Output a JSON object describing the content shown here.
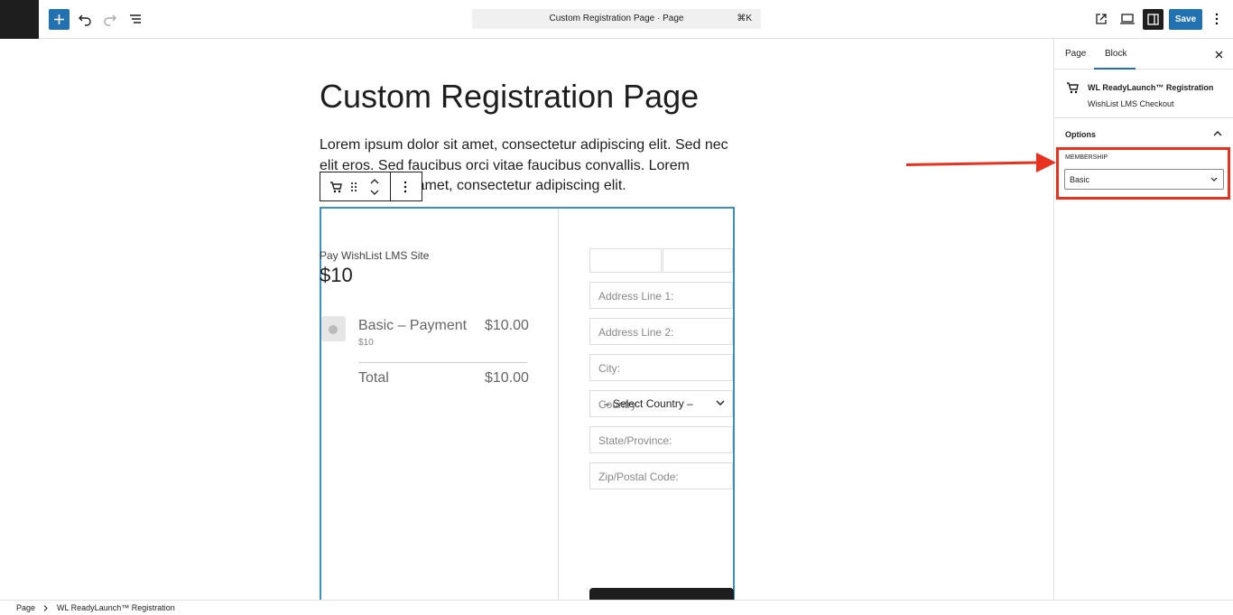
{
  "toolbar": {
    "document_title": "Custom Registration Page · Page",
    "shortcut": "⌘K",
    "save": "Save"
  },
  "editor": {
    "title": "Custom Registration Page",
    "paragraph": "Lorem ipsum dolor sit amet, consectetur adipiscing elit. Sed nec elit eros. Sed faucibus orci vitae faucibus convallis. Lorem ipsum dolor sit amet, consectetur adipiscing elit.",
    "checkout": {
      "site": "Pay WishList LMS Site",
      "price": "$10",
      "item": {
        "name": "Basic – Payment",
        "amount": "$10.00",
        "sub": "$10"
      },
      "total": {
        "label": "Total",
        "amount": "$10.00"
      },
      "fields": [
        "Address Line 1:",
        "Address Line 2:",
        "City:",
        "Country",
        "State/Province:",
        "Zip/Postal Code:"
      ],
      "country_select": "– Select Country –"
    }
  },
  "sidebar": {
    "tabs": [
      "Page",
      "Block"
    ],
    "block_title": "WL ReadyLaunch™ Registration",
    "block_desc": "WishList LMS Checkout",
    "panel": "Options",
    "field_label": "MEMBERSHIP",
    "field_value": "Basic"
  },
  "footer": {
    "breadcrumb": [
      "Page",
      "WL ReadyLaunch™ Registration"
    ]
  }
}
